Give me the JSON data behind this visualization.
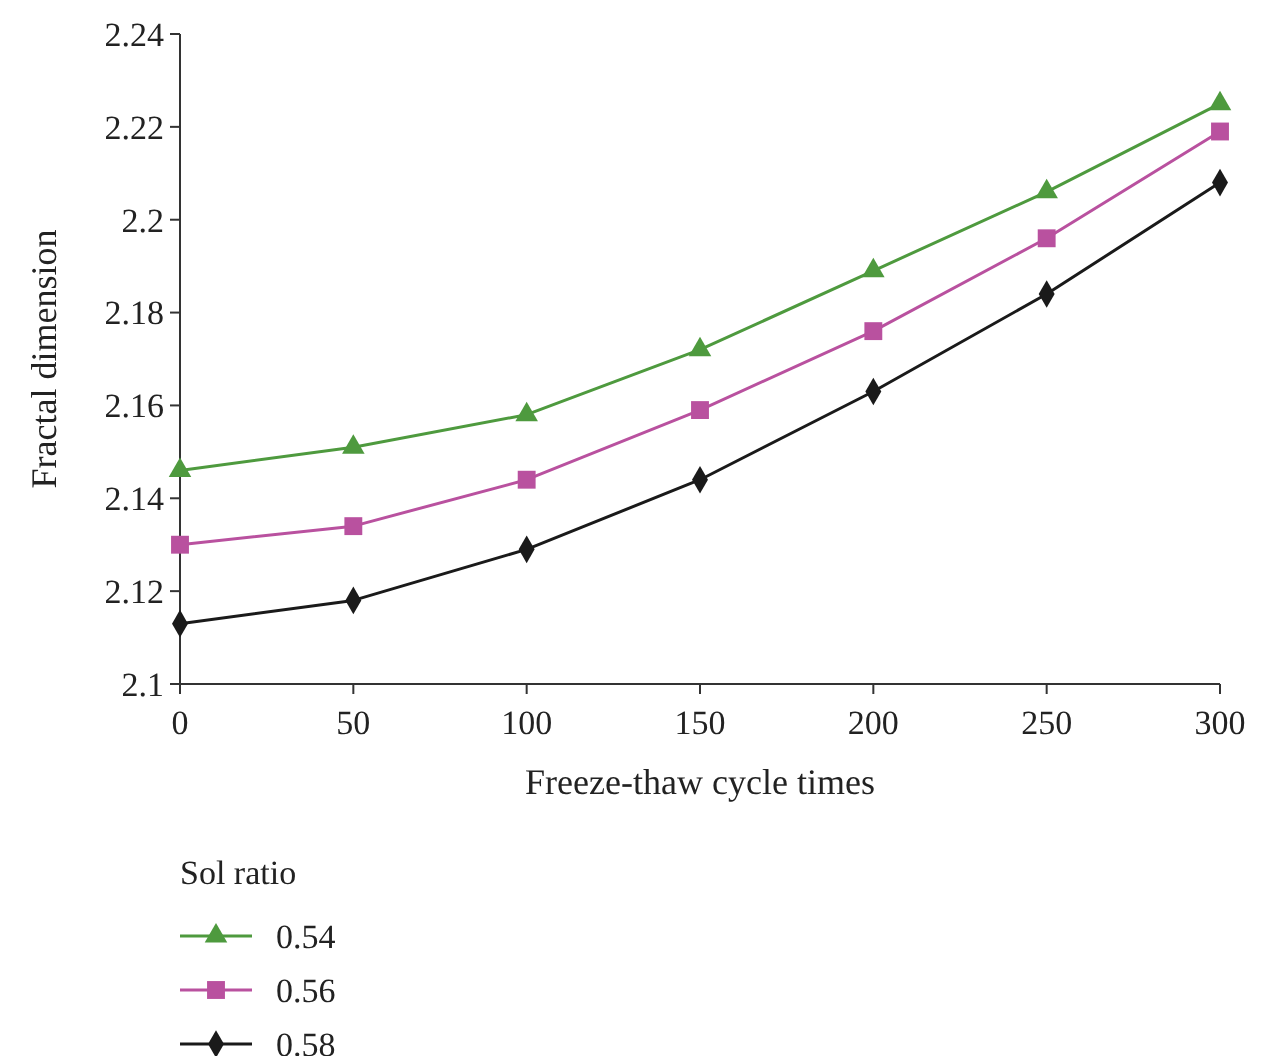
{
  "chart_data": {
    "type": "line",
    "xlabel": "Freeze-thaw cycle times",
    "ylabel": "Fractal dimension",
    "legend_title": "Sol ratio",
    "legend": "bottom left",
    "grid": false,
    "x": [
      0,
      50,
      100,
      150,
      200,
      250,
      300
    ],
    "xlim": [
      0,
      300
    ],
    "xticks": [
      0,
      50,
      100,
      150,
      200,
      250,
      300
    ],
    "ylim": [
      2.1,
      2.24
    ],
    "yticks": [
      2.1,
      2.12,
      2.14,
      2.16,
      2.18,
      2.2,
      2.22,
      2.24
    ],
    "series": [
      {
        "name": "0.54",
        "color": "#4e9a3e",
        "marker": "triangle",
        "values": [
          2.146,
          2.151,
          2.158,
          2.172,
          2.189,
          2.206,
          2.225
        ]
      },
      {
        "name": "0.56",
        "color": "#b9519f",
        "marker": "square",
        "values": [
          2.13,
          2.134,
          2.144,
          2.159,
          2.176,
          2.196,
          2.219
        ]
      },
      {
        "name": "0.58",
        "color": "#1a1a1a",
        "marker": "diamond",
        "values": [
          2.113,
          2.118,
          2.129,
          2.144,
          2.163,
          2.184,
          2.208
        ]
      }
    ]
  }
}
